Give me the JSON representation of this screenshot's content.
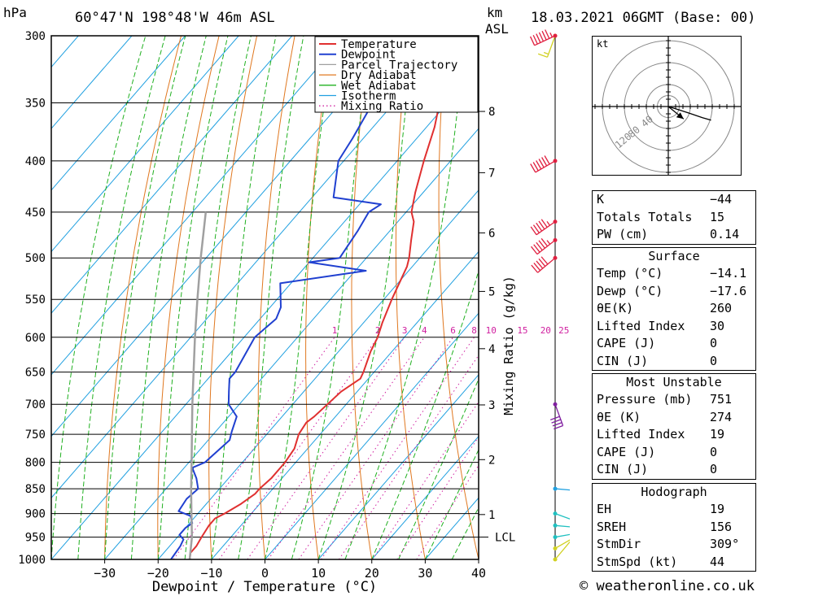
{
  "header": {
    "pressure_unit": "hPa",
    "location": "60°47'N  198°48'W  46m  ASL",
    "km_label": "km",
    "asl_label": "ASL",
    "datetime": "18.03.2021  06GMT  (Base: 00)"
  },
  "footer": {
    "copyright": "© weatheronline.co.uk"
  },
  "chart_data": {
    "type": "line",
    "title": "60°47'N  198°48'W  46m  ASL",
    "xlabel": "Dewpoint / Temperature (°C)",
    "ylabel": "hPa",
    "y2label": "Mixing Ratio (g/kg)",
    "xlim": [
      -40,
      40
    ],
    "ylim": [
      1000,
      300
    ],
    "x_ticks": [
      -30,
      -20,
      -10,
      0,
      10,
      20,
      30,
      40
    ],
    "pressure_levels": [
      300,
      350,
      400,
      450,
      500,
      550,
      600,
      650,
      700,
      750,
      800,
      850,
      900,
      950,
      1000
    ],
    "km_ticks": [
      {
        "km": "1",
        "p": 902
      },
      {
        "km": "2",
        "p": 795
      },
      {
        "km": "3",
        "p": 701
      },
      {
        "km": "4",
        "p": 616
      },
      {
        "km": "5",
        "p": 540
      },
      {
        "km": "6",
        "p": 472
      },
      {
        "km": "7",
        "p": 411
      },
      {
        "km": "8",
        "p": 357
      }
    ],
    "lcl": {
      "label": "LCL",
      "p": 950
    },
    "mixing_ratio_labels": [
      "1",
      "2",
      "3",
      "4",
      "6",
      "8",
      "10",
      "15",
      "20",
      "25"
    ],
    "mixing_ratio_values": [
      1,
      2,
      3,
      4,
      6,
      8,
      10,
      15,
      20,
      25
    ],
    "legend": [
      "Temperature",
      "Dewpoint",
      "Parcel Trajectory",
      "Dry Adiabat",
      "Wet Adiabat",
      "Isotherm",
      "Mixing Ratio"
    ],
    "legend_position": "top-right",
    "colors": {
      "temperature": "#e03030",
      "dewpoint": "#2040d0",
      "parcel": "#a0a0a0",
      "dry_adiabat": "#e07820",
      "wet_adiabat": "#20b020",
      "isotherm": "#20a0e0",
      "mixing_ratio": "#d020a0"
    },
    "series": [
      {
        "name": "Temperature",
        "points": [
          [
            1000,
            -14.1
          ],
          [
            985,
            -15
          ],
          [
            970,
            -15
          ],
          [
            950,
            -15.5
          ],
          [
            925,
            -16
          ],
          [
            910,
            -16
          ],
          [
            900,
            -15
          ],
          [
            880,
            -13.5
          ],
          [
            860,
            -12.5
          ],
          [
            850,
            -12.5
          ],
          [
            830,
            -12
          ],
          [
            800,
            -12
          ],
          [
            775,
            -12.5
          ],
          [
            750,
            -14
          ],
          [
            730,
            -14.5
          ],
          [
            720,
            -14
          ],
          [
            700,
            -13.5
          ],
          [
            680,
            -13
          ],
          [
            660,
            -11.5
          ],
          [
            650,
            -12
          ],
          [
            620,
            -14
          ],
          [
            600,
            -15
          ],
          [
            580,
            -16.5
          ],
          [
            550,
            -18.5
          ],
          [
            510,
            -21
          ],
          [
            500,
            -22
          ],
          [
            480,
            -24.5
          ],
          [
            460,
            -27
          ],
          [
            450,
            -29
          ],
          [
            430,
            -31.5
          ],
          [
            400,
            -35
          ],
          [
            370,
            -38.5
          ],
          [
            350,
            -41.5
          ],
          [
            320,
            -45.5
          ],
          [
            300,
            -48
          ]
        ]
      },
      {
        "name": "Dewpoint",
        "points": [
          [
            1000,
            -17.6
          ],
          [
            970,
            -18
          ],
          [
            955,
            -18.5
          ],
          [
            945,
            -20
          ],
          [
            930,
            -20
          ],
          [
            920,
            -19.5
          ],
          [
            905,
            -21
          ],
          [
            895,
            -24
          ],
          [
            870,
            -24.5
          ],
          [
            850,
            -24
          ],
          [
            830,
            -26
          ],
          [
            810,
            -28.5
          ],
          [
            800,
            -27
          ],
          [
            760,
            -26
          ],
          [
            745,
            -27
          ],
          [
            720,
            -28.5
          ],
          [
            700,
            -32
          ],
          [
            680,
            -34
          ],
          [
            660,
            -36
          ],
          [
            650,
            -36
          ],
          [
            600,
            -38
          ],
          [
            575,
            -37
          ],
          [
            560,
            -38
          ],
          [
            530,
            -42
          ],
          [
            515,
            -28
          ],
          [
            505,
            -40
          ],
          [
            500,
            -35
          ],
          [
            470,
            -36
          ],
          [
            450,
            -37
          ],
          [
            442,
            -36
          ],
          [
            435,
            -46
          ],
          [
            400,
            -51
          ],
          [
            380,
            -52
          ],
          [
            350,
            -54
          ],
          [
            320,
            -56
          ],
          [
            300,
            -57
          ]
        ]
      },
      {
        "name": "Parcel Trajectory",
        "points": [
          [
            1000,
            -14.1
          ],
          [
            950,
            -17.3
          ],
          [
            900,
            -21.2
          ],
          [
            850,
            -25.3
          ],
          [
            800,
            -29.5
          ],
          [
            750,
            -34
          ],
          [
            700,
            -38.8
          ],
          [
            650,
            -43.8
          ],
          [
            600,
            -49.2
          ],
          [
            550,
            -54.9
          ],
          [
            500,
            -61.0
          ],
          [
            450,
            -67.5
          ]
        ]
      }
    ],
    "wind_barbs": [
      {
        "p": 1000,
        "dir": 40,
        "spd": 5,
        "color": "#d0d020"
      },
      {
        "p": 975,
        "dir": 60,
        "spd": 8,
        "color": "#d0d020"
      },
      {
        "p": 950,
        "dir": 80,
        "spd": 10,
        "color": "#20c0c0"
      },
      {
        "p": 925,
        "dir": 95,
        "spd": 15,
        "color": "#20c0c0"
      },
      {
        "p": 900,
        "dir": 110,
        "spd": 20,
        "color": "#20c0c0"
      },
      {
        "p": 850,
        "dir": 95,
        "spd": 25,
        "color": "#20a0e0"
      },
      {
        "p": 700,
        "dir": 160,
        "spd": 40,
        "color": "#8020a0"
      },
      {
        "p": 500,
        "dir": 230,
        "spd": 50,
        "color": "#e02040"
      },
      {
        "p": 480,
        "dir": 232,
        "spd": 55,
        "color": "#e02040"
      },
      {
        "p": 460,
        "dir": 235,
        "spd": 55,
        "color": "#e02040"
      },
      {
        "p": 400,
        "dir": 240,
        "spd": 60,
        "color": "#e02040"
      },
      {
        "p": 300,
        "dir": 200,
        "spd": 15,
        "color": "#d0d020"
      },
      {
        "p": 250,
        "dir": 245,
        "spd": 65,
        "color": "#e02040"
      }
    ]
  },
  "hodograph": {
    "unit": "kt",
    "ring_labels": [
      "40",
      "80",
      "120"
    ],
    "path": [
      [
        0,
        0
      ],
      [
        3,
        -1
      ],
      [
        10,
        -3
      ],
      [
        25,
        -8
      ],
      [
        40,
        -13
      ],
      [
        50,
        -16
      ]
    ],
    "storm_motion": {
      "dir": 309,
      "spd": 44
    }
  },
  "stats": {
    "indices": [
      {
        "label": "K",
        "value": "-44"
      },
      {
        "label": "Totals Totals",
        "value": "15"
      },
      {
        "label": "PW (cm)",
        "value": "0.14"
      }
    ],
    "surface": {
      "title": "Surface",
      "rows": [
        {
          "label": "Temp (°C)",
          "value": "-14.1"
        },
        {
          "label": "Dewp (°C)",
          "value": "-17.6"
        },
        {
          "label": "θE(K)",
          "value": "260"
        },
        {
          "label": "Lifted Index",
          "value": "30"
        },
        {
          "label": "CAPE (J)",
          "value": "0"
        },
        {
          "label": "CIN (J)",
          "value": "0"
        }
      ]
    },
    "most_unstable": {
      "title": "Most Unstable",
      "rows": [
        {
          "label": "Pressure (mb)",
          "value": "751"
        },
        {
          "label": "θE (K)",
          "value": "274"
        },
        {
          "label": "Lifted Index",
          "value": "19"
        },
        {
          "label": "CAPE (J)",
          "value": "0"
        },
        {
          "label": "CIN (J)",
          "value": "0"
        }
      ]
    },
    "hodograph_stats": {
      "title": "Hodograph",
      "rows": [
        {
          "label": "EH",
          "value": "19"
        },
        {
          "label": "SREH",
          "value": "156"
        },
        {
          "label": "StmDir",
          "value": "309°"
        },
        {
          "label": "StmSpd (kt)",
          "value": "44"
        }
      ]
    }
  }
}
